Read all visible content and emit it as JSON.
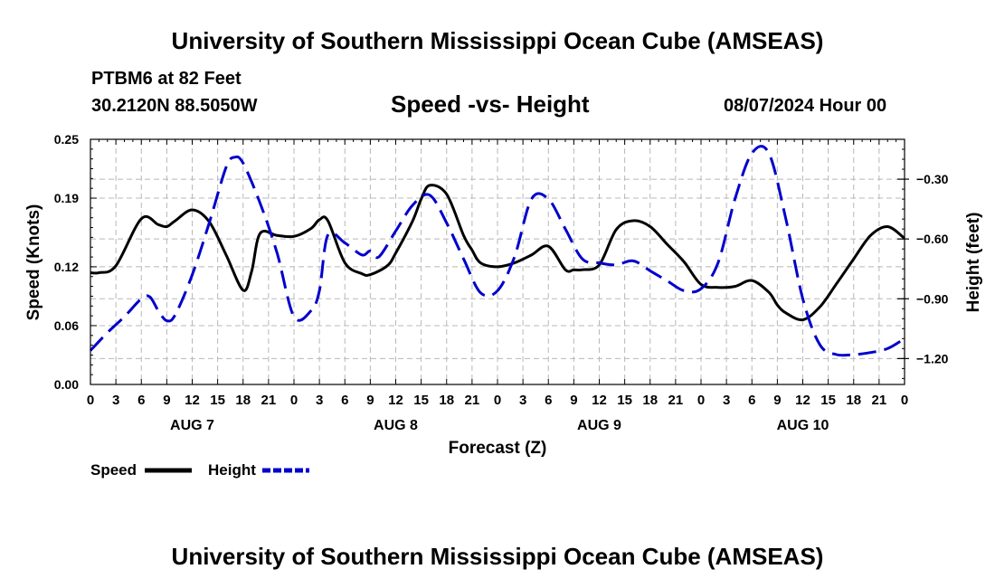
{
  "header": {
    "title": "University of Southern Mississippi Ocean Cube (AMSEAS)",
    "station": "PTBM6 at 82 Feet",
    "coords": "30.2120N  88.5050W",
    "subtitle": "Speed -vs- Height",
    "datetime": "08/07/2024 Hour 00"
  },
  "footer": {
    "title": "University of Southern Mississippi Ocean Cube (AMSEAS)"
  },
  "chart_data": {
    "type": "line",
    "title": "Speed -vs- Height",
    "xlabel": "Forecast (Z)",
    "ylabel": "Speed (Knots)",
    "ylabel_right": "Height (feet)",
    "grid": true,
    "xlim": [
      0,
      96
    ],
    "ylim": [
      0,
      0.25
    ],
    "ylim_right": [
      -1.33,
      -0.1
    ],
    "x_ticks": [
      0,
      3,
      6,
      9,
      12,
      15,
      18,
      21,
      24,
      27,
      30,
      33,
      36,
      39,
      42,
      45,
      48,
      51,
      54,
      57,
      60,
      63,
      66,
      69,
      72,
      75,
      78,
      81,
      84,
      87,
      90,
      93,
      96
    ],
    "x_tick_labels": [
      "0",
      "3",
      "6",
      "9",
      "12",
      "15",
      "18",
      "21",
      "0",
      "3",
      "6",
      "9",
      "12",
      "15",
      "18",
      "21",
      "0",
      "3",
      "6",
      "9",
      "12",
      "15",
      "18",
      "21",
      "0",
      "3",
      "6",
      "9",
      "12",
      "15",
      "18",
      "21",
      "0"
    ],
    "y_ticks": [
      0,
      0.06,
      0.12,
      0.19,
      0.25
    ],
    "y_tick_labels": [
      "0.00",
      "0.06",
      "0.12",
      "0.19",
      "0.25"
    ],
    "y_right_ticks": [
      -0.3,
      -0.6,
      -0.9,
      -1.2
    ],
    "y_right_tick_labels": [
      "-0.30",
      "-0.60",
      "-0.90",
      "-1.20"
    ],
    "day_labels": [
      {
        "x": 12,
        "label": "AUG 7"
      },
      {
        "x": 36,
        "label": "AUG 8"
      },
      {
        "x": 60,
        "label": "AUG 9"
      },
      {
        "x": 84,
        "label": "AUG 10"
      }
    ],
    "legend_position": "bottom-left",
    "series": [
      {
        "name": "Speed",
        "axis": "left",
        "color": "#000000",
        "dash": "solid",
        "x": [
          0,
          1,
          3,
          6,
          8,
          9,
          10,
          12,
          14,
          16,
          18,
          19,
          20,
          22,
          24,
          26,
          27,
          28,
          30,
          32,
          33,
          35,
          36,
          38,
          39,
          40,
          42,
          44,
          45,
          46,
          48,
          50,
          52,
          54,
          56,
          57,
          58,
          60,
          62,
          64,
          66,
          68,
          70,
          72,
          74,
          76,
          78,
          80,
          81,
          82,
          84,
          86,
          88,
          90,
          92,
          94,
          96
        ],
        "values": [
          0.114,
          0.114,
          0.121,
          0.169,
          0.163,
          0.161,
          0.167,
          0.178,
          0.166,
          0.132,
          0.096,
          0.115,
          0.154,
          0.152,
          0.151,
          0.159,
          0.168,
          0.167,
          0.124,
          0.113,
          0.112,
          0.121,
          0.134,
          0.167,
          0.189,
          0.203,
          0.194,
          0.152,
          0.137,
          0.124,
          0.12,
          0.124,
          0.132,
          0.141,
          0.117,
          0.117,
          0.117,
          0.122,
          0.158,
          0.167,
          0.161,
          0.143,
          0.125,
          0.102,
          0.099,
          0.1,
          0.106,
          0.094,
          0.081,
          0.073,
          0.066,
          0.079,
          0.103,
          0.128,
          0.152,
          0.161,
          0.149
        ]
      },
      {
        "name": "Height",
        "axis": "right",
        "color": "#0000cc",
        "dash": "dashed",
        "x": [
          0,
          2,
          4,
          6,
          7,
          8,
          9,
          10,
          12,
          14,
          16,
          17,
          18,
          20,
          22,
          24,
          26,
          27,
          28,
          30,
          32,
          33,
          34,
          36,
          38,
          40,
          42,
          44,
          46,
          48,
          50,
          52,
          54,
          56,
          58,
          60,
          62,
          64,
          66,
          68,
          70,
          72,
          74,
          76,
          78,
          80,
          82,
          84,
          86,
          88,
          90,
          92,
          94,
          96
        ],
        "values": [
          -1.16,
          -1.07,
          -0.99,
          -0.9,
          -0.89,
          -0.96,
          -1.01,
          -0.98,
          -0.78,
          -0.52,
          -0.24,
          -0.19,
          -0.22,
          -0.42,
          -0.67,
          -0.99,
          -0.96,
          -0.86,
          -0.58,
          -0.62,
          -0.68,
          -0.66,
          -0.69,
          -0.56,
          -0.43,
          -0.38,
          -0.52,
          -0.7,
          -0.87,
          -0.86,
          -0.69,
          -0.4,
          -0.4,
          -0.55,
          -0.7,
          -0.72,
          -0.73,
          -0.71,
          -0.76,
          -0.81,
          -0.86,
          -0.85,
          -0.72,
          -0.4,
          -0.17,
          -0.17,
          -0.5,
          -0.9,
          -1.13,
          -1.18,
          -1.18,
          -1.17,
          -1.15,
          -1.1
        ]
      }
    ]
  }
}
